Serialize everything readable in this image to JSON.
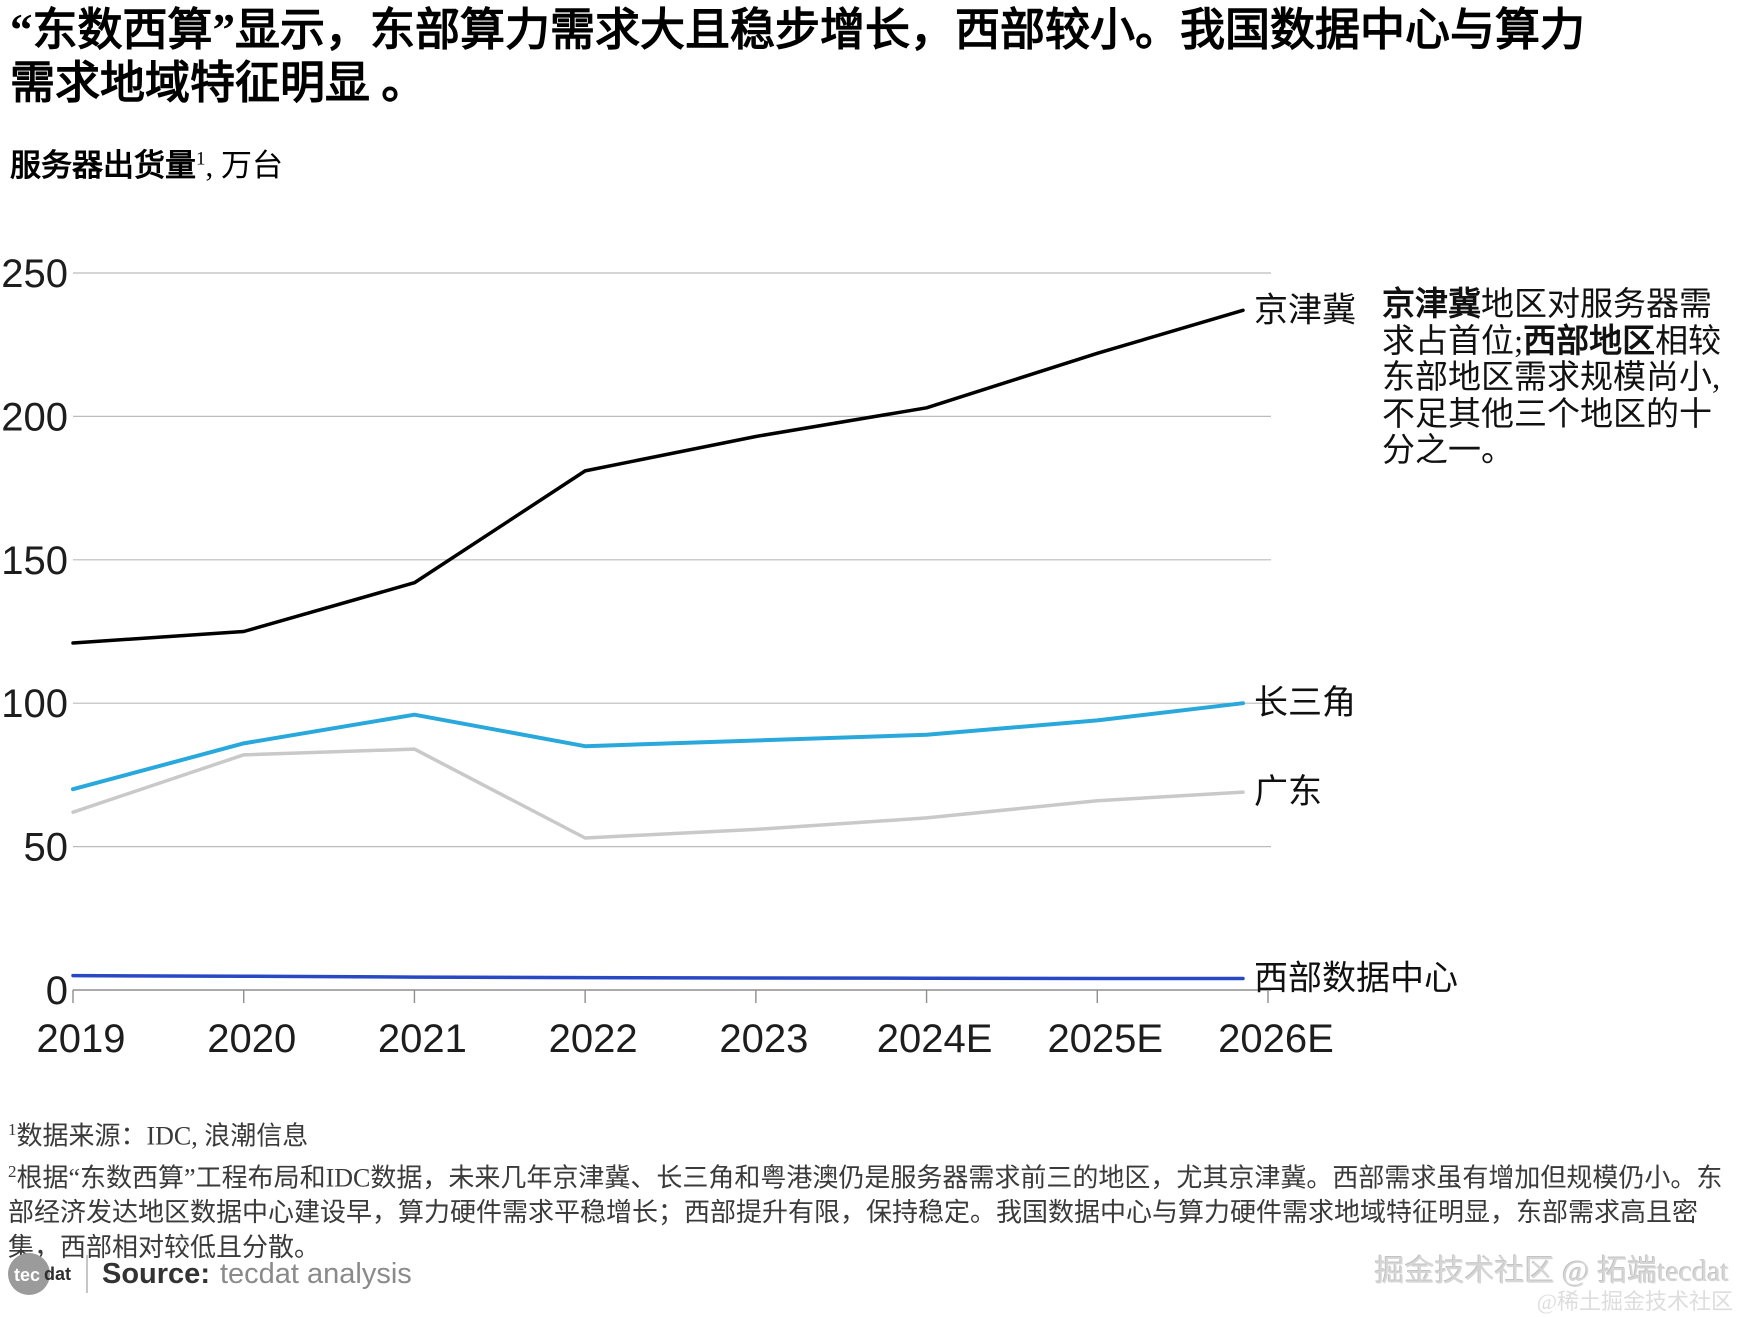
{
  "title": {
    "text": "“东数西算”显示，东部算力需求大且稳步增长，西部较小。我国数据中心与算力需求地域特征明显 。"
  },
  "subtitle": {
    "bold": "服务器出货量",
    "sup": "1",
    "rest": ", 万台"
  },
  "chart_data": {
    "type": "line",
    "title": "服务器出货量, 万台",
    "categories": [
      "2019",
      "2020",
      "2021",
      "2022",
      "2023",
      "2024E",
      "2025E",
      "2026E"
    ],
    "series": [
      {
        "name": "京津冀",
        "color": "#000000",
        "line_width": 3.5,
        "values": [
          121,
          125,
          142,
          181,
          193,
          203,
          222,
          237
        ]
      },
      {
        "name": "长三角",
        "color": "#29a8db",
        "line_width": 4,
        "values": [
          70,
          86,
          96,
          85,
          87,
          89,
          94,
          100
        ]
      },
      {
        "name": "广东",
        "color": "#c9c9c9",
        "line_width": 3.5,
        "values": [
          62,
          82,
          84,
          53,
          56,
          60,
          66,
          69
        ]
      },
      {
        "name": "西部数据中心",
        "color": "#2948c4",
        "line_width": 3.5,
        "values": [
          5,
          4.8,
          4.5,
          4.3,
          4.2,
          4.1,
          4,
          4
        ]
      }
    ],
    "yticks": [
      0,
      50,
      100,
      150,
      200,
      250
    ],
    "ylim": [
      0,
      250
    ],
    "grid": true,
    "legend_position": "labels-at-line-end"
  },
  "annotation": {
    "segments": [
      {
        "text": "京津冀",
        "bold": true
      },
      {
        "text": "地区对服务器需求占首位;",
        "bold": false
      },
      {
        "text": "西部地区",
        "bold": true
      },
      {
        "text": "相较东部地区需求规模尚小,不足其他三个地区的十分之一。",
        "bold": false
      }
    ]
  },
  "footnotes": [
    {
      "sup": "1",
      "text": "数据来源：IDC, 浪潮信息"
    },
    {
      "sup": "2",
      "text": "根据“东数西算”工程布局和IDC数据，未来几年京津冀、长三角和粤港澳仍是服务器需求前三的地区，尤其京津冀。西部需求虽有增加但规模仍小。东部经济发达地区数据中心建设早，算力硬件需求平稳增长；西部提升有限，保持稳定。我国数据中心与算力硬件需求地域特征明显，东部需求高且密集，西部相对较低且分散。"
    }
  ],
  "source": {
    "logo_circle_text": "tec",
    "logo_rest_text": "dat",
    "label": "Source:",
    "value": "tecdat analysis"
  },
  "watermarks": {
    "line1": "掘金技术社区 @ 拓端tecdat",
    "line2": "@稀土掘金技术社区"
  }
}
